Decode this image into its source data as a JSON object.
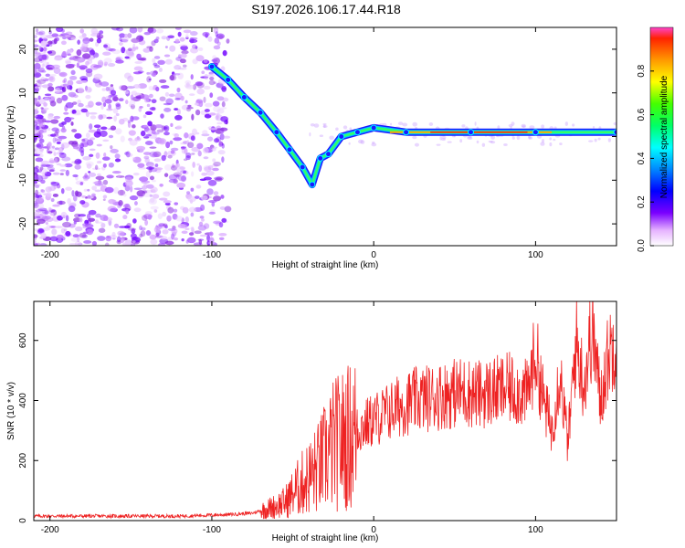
{
  "title": "S197.2026.106.17.44.R18",
  "chart_data": [
    {
      "type": "heatmap",
      "name": "spectrogram",
      "xlabel": "Height of straight line (km)",
      "ylabel": "Frequency (Hz)",
      "xlim": [
        -210,
        150
      ],
      "ylim": [
        -25,
        25
      ],
      "xticks": [
        -200,
        -100,
        0,
        100
      ],
      "yticks": [
        -20,
        -10,
        0,
        10,
        20
      ],
      "colorbar": {
        "label": "Normalized spectral amplitude",
        "range": [
          0,
          1
        ],
        "ticks": [
          0.0,
          0.2,
          0.4,
          0.6,
          0.8
        ]
      },
      "signal_track": [
        {
          "height": -100,
          "frequency": 16
        },
        {
          "height": -90,
          "frequency": 13
        },
        {
          "height": -80,
          "frequency": 9
        },
        {
          "height": -70,
          "frequency": 5.5
        },
        {
          "height": -60,
          "frequency": 1
        },
        {
          "height": -52,
          "frequency": -3
        },
        {
          "height": -44,
          "frequency": -7
        },
        {
          "height": -38,
          "frequency": -11
        },
        {
          "height": -33,
          "frequency": -5
        },
        {
          "height": -28,
          "frequency": -4
        },
        {
          "height": -20,
          "frequency": 0
        },
        {
          "height": -10,
          "frequency": 1
        },
        {
          "height": 0,
          "frequency": 2
        },
        {
          "height": 20,
          "frequency": 1
        },
        {
          "height": 60,
          "frequency": 1
        },
        {
          "height": 100,
          "frequency": 1
        },
        {
          "height": 150,
          "frequency": 1
        }
      ]
    },
    {
      "type": "line",
      "name": "snr",
      "xlabel": "Height of straight line (km)",
      "ylabel": "SNR (10 * v/v)",
      "xlim": [
        -210,
        150
      ],
      "ylim": [
        0,
        730
      ],
      "xticks": [
        -200,
        -100,
        0,
        100
      ],
      "yticks": [
        0,
        200,
        400,
        600
      ],
      "color": "#ee2222",
      "series": [
        {
          "name": "SNR",
          "x": [
            -210,
            -180,
            -150,
            -120,
            -90,
            -75,
            -65,
            -55,
            -45,
            -35,
            -25,
            -15,
            -5,
            5,
            15,
            25,
            35,
            45,
            55,
            65,
            75,
            85,
            95,
            100,
            105,
            110,
            115,
            120,
            125,
            130,
            135,
            140,
            145,
            150
          ],
          "y": [
            15,
            15,
            15,
            15,
            20,
            25,
            40,
            60,
            120,
            170,
            250,
            280,
            320,
            350,
            380,
            400,
            410,
            420,
            430,
            420,
            430,
            440,
            420,
            560,
            400,
            300,
            500,
            250,
            600,
            450,
            650,
            400,
            550,
            620
          ]
        }
      ]
    }
  ]
}
